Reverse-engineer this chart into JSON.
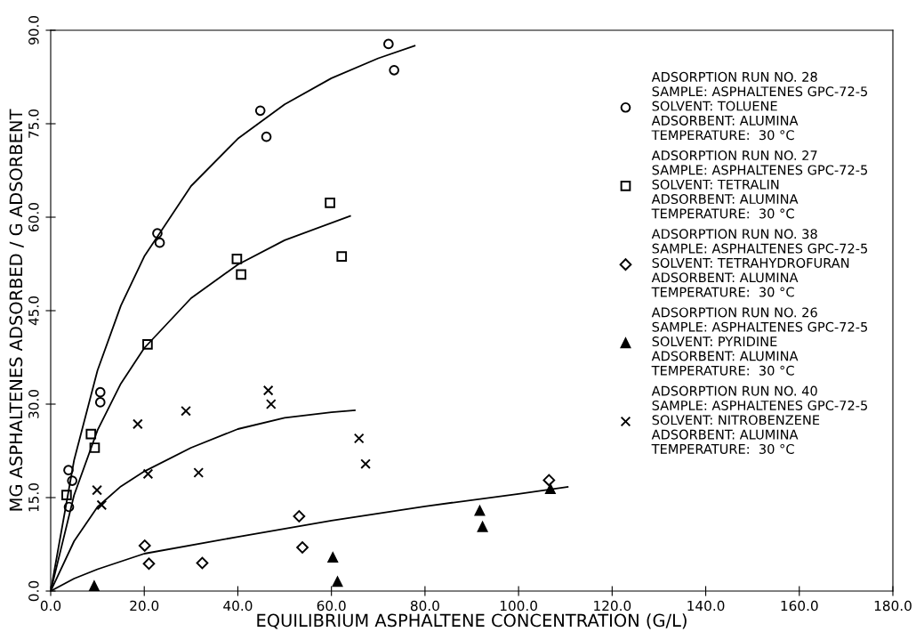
{
  "chart_data": {
    "type": "scatter",
    "xlabel": "EQUILIBRIUM ASPHALTENE CONCENTRATION (G/L)",
    "ylabel": "MG ASPHALTENES ADSORBED / G ADSORBENT",
    "xlim": [
      0,
      180
    ],
    "ylim": [
      0,
      90
    ],
    "xticks": [
      {
        "value": 0,
        "label": "0.0"
      },
      {
        "value": 20,
        "label": "20.0"
      },
      {
        "value": 40,
        "label": "40.0"
      },
      {
        "value": 60,
        "label": "60.0"
      },
      {
        "value": 80,
        "label": "80.0"
      },
      {
        "value": 100,
        "label": "100.0"
      },
      {
        "value": 120,
        "label": "120.0"
      },
      {
        "value": 140,
        "label": "140.0"
      },
      {
        "value": 160,
        "label": "160.0"
      },
      {
        "value": 180,
        "label": "180.0"
      }
    ],
    "yticks": [
      {
        "value": 0,
        "label": "0.0"
      },
      {
        "value": 15,
        "label": "15.0"
      },
      {
        "value": 30,
        "label": "30.0"
      },
      {
        "value": 45,
        "label": "45.0"
      },
      {
        "value": 60,
        "label": "60.0"
      },
      {
        "value": 75,
        "label": "75.0"
      },
      {
        "value": 90,
        "label": "90.0"
      }
    ],
    "grid": false,
    "legend": "top right",
    "series": [
      {
        "marker": "circle",
        "color": "#000000",
        "name": "ADSORPTION RUN NO. 28\nSAMPLE: ASPHALTENES GPC-72-5\nSOLVENT: TOLUENE\nADSORBENT: ALUMINA\nTEMPERATURE:  30 °C",
        "x": [
          72.2,
          73.4,
          44.8,
          46.1,
          22.8,
          23.3,
          10.6,
          10.6,
          3.8,
          4.6,
          3.9
        ],
        "values": [
          87.8,
          83.6,
          77.1,
          72.9,
          57.4,
          55.9,
          31.9,
          30.3,
          19.4,
          17.7,
          13.5
        ]
      },
      {
        "marker": "square",
        "color": "#000000",
        "name": "ADSORPTION RUN NO. 27\nSAMPLE: ASPHALTENES GPC-72-5\nSOLVENT: TETRALIN\nADSORBENT: ALUMINA\nTEMPERATURE:  30 °C",
        "x": [
          59.7,
          62.2,
          39.8,
          40.7,
          20.7,
          8.6,
          9.4,
          3.4
        ],
        "values": [
          62.3,
          53.7,
          53.3,
          50.8,
          39.6,
          25.2,
          23.0,
          15.4
        ]
      },
      {
        "marker": "diamond",
        "color": "#000000",
        "name": "ADSORPTION RUN NO. 38\nSAMPLE: ASPHALTENES GPC-72-5\nSOLVENT: TETRAHYDROFURAN\nADSORBENT: ALUMINA\nTEMPERATURE:  30 °C",
        "x": [
          53.1,
          20.1,
          53.8,
          21.0,
          32.4,
          106.5
        ],
        "values": [
          12.0,
          7.3,
          7.0,
          4.4,
          4.5,
          17.8
        ]
      },
      {
        "marker": "triangle",
        "color": "#000000",
        "name": "ADSORPTION RUN NO. 26\nSAMPLE: ASPHALTENES GPC-72-5\nSOLVENT: PYRIDINE\nADSORBENT: ALUMINA\nTEMPERATURE:  30 °C",
        "x": [
          9.3,
          60.3,
          61.3,
          91.7,
          92.3,
          106.8
        ],
        "values": [
          0.8,
          5.4,
          1.5,
          12.9,
          10.3,
          16.4
        ]
      },
      {
        "marker": "cross",
        "color": "#000000",
        "name": "ADSORPTION RUN NO. 40\nSAMPLE: ASPHALTENES GPC-72-5\nSOLVENT: NITROBENZENE\nADSORBENT: ALUMINA\nTEMPERATURE:  30 °C",
        "x": [
          46.5,
          47.1,
          28.9,
          18.6,
          65.9,
          67.3,
          20.8,
          31.6,
          9.9,
          10.9
        ],
        "values": [
          32.2,
          30.0,
          28.9,
          26.8,
          24.5,
          20.4,
          18.8,
          19.0,
          16.2,
          13.8
        ]
      },
      {
        "type": "line",
        "marker": "none",
        "color": "#000000",
        "x": [
          0,
          5,
          10,
          15,
          20,
          30,
          40,
          50,
          60,
          70,
          77.8
        ],
        "values": [
          0,
          21.0,
          35.4,
          45.8,
          53.7,
          65.0,
          72.6,
          78.1,
          82.3,
          85.5,
          87.5
        ]
      },
      {
        "type": "line",
        "marker": "none",
        "color": "#000000",
        "x": [
          0,
          5,
          10,
          15,
          20,
          30,
          40,
          50,
          64
        ],
        "values": [
          0,
          15.4,
          25.8,
          33.3,
          39.0,
          47.0,
          52.4,
          56.3,
          60.2
        ]
      },
      {
        "type": "line",
        "marker": "none",
        "color": "#000000",
        "x": [
          0,
          5,
          10,
          15,
          20,
          30,
          40,
          50,
          60,
          65
        ],
        "values": [
          0,
          8.0,
          13.5,
          16.8,
          19.2,
          23.0,
          26.0,
          27.8,
          28.7,
          29.0
        ]
      },
      {
        "type": "line",
        "marker": "none",
        "color": "#000000",
        "x": [
          0,
          5,
          10,
          20,
          40,
          60,
          80,
          100,
          110.5
        ],
        "values": [
          0,
          2.0,
          3.5,
          6.0,
          8.7,
          11.3,
          13.6,
          15.6,
          16.7
        ]
      }
    ]
  }
}
